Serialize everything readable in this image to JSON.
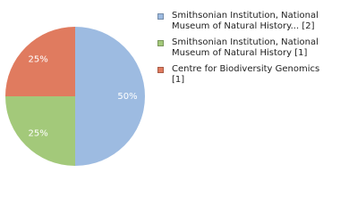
{
  "chart_data": {
    "type": "pie",
    "categories": [
      "Smithsonian Institution, National Museum of Natural History... [2]",
      "Smithsonian Institution, National Museum of Natural History [1]",
      "Centre for Biodiversity Genomics [1]"
    ],
    "values": [
      50,
      25,
      25
    ],
    "value_labels": [
      "50%",
      "25%",
      "25%"
    ],
    "colors": [
      "#9dbbe1",
      "#a3c97a",
      "#e07b5f"
    ],
    "legend": "right"
  }
}
